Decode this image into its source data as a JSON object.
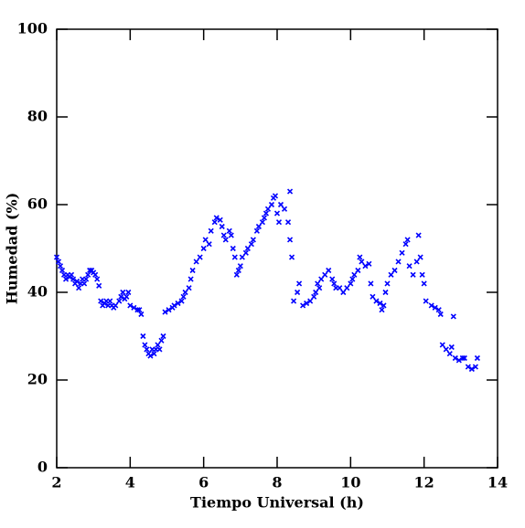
{
  "chart_data": {
    "type": "scatter",
    "xlabel": "Tiempo Universal (h)",
    "ylabel": "Humedad (%)",
    "color": "#0000ff",
    "xlim": [
      2,
      14
    ],
    "ylim": [
      0,
      100
    ],
    "xticks": [
      2,
      4,
      6,
      8,
      10,
      12,
      14
    ],
    "yticks": [
      0,
      20,
      40,
      60,
      80,
      100
    ],
    "x": [
      2.0,
      2.05,
      2.1,
      2.15,
      2.2,
      2.25,
      2.3,
      2.35,
      2.4,
      2.45,
      2.5,
      2.55,
      2.6,
      2.65,
      2.7,
      2.75,
      2.8,
      2.85,
      2.9,
      2.95,
      3.0,
      3.05,
      3.1,
      3.15,
      3.2,
      3.25,
      3.3,
      3.35,
      3.4,
      3.45,
      3.5,
      3.55,
      3.6,
      3.7,
      3.75,
      3.8,
      3.85,
      3.9,
      3.95,
      4.0,
      4.1,
      4.2,
      4.25,
      4.3,
      4.35,
      4.4,
      4.45,
      4.5,
      4.55,
      4.6,
      4.65,
      4.7,
      4.75,
      4.8,
      4.85,
      4.9,
      4.95,
      5.05,
      5.15,
      5.2,
      5.3,
      5.4,
      5.45,
      5.5,
      5.6,
      5.65,
      5.7,
      5.8,
      5.9,
      6.0,
      6.05,
      6.15,
      6.2,
      6.3,
      6.35,
      6.45,
      6.5,
      6.55,
      6.6,
      6.7,
      6.75,
      6.8,
      6.85,
      6.9,
      6.95,
      7.0,
      7.05,
      7.15,
      7.2,
      7.3,
      7.35,
      7.45,
      7.5,
      7.6,
      7.65,
      7.7,
      7.75,
      7.85,
      7.9,
      7.95,
      8.0,
      8.05,
      8.1,
      8.2,
      8.35,
      8.3,
      8.35,
      8.4,
      8.45,
      8.55,
      8.6,
      8.7,
      8.8,
      8.9,
      9.0,
      9.05,
      9.1,
      9.15,
      9.2,
      9.3,
      9.4,
      9.5,
      9.55,
      9.6,
      9.7,
      9.8,
      9.9,
      10.0,
      10.05,
      10.1,
      10.2,
      10.25,
      10.3,
      10.4,
      10.5,
      10.55,
      10.6,
      10.7,
      10.8,
      10.85,
      10.9,
      10.95,
      11.0,
      11.1,
      11.2,
      11.3,
      11.4,
      11.5,
      11.55,
      11.6,
      11.7,
      11.8,
      11.85,
      11.9,
      11.95,
      12.0,
      12.05,
      12.2,
      12.3,
      12.4,
      12.45,
      12.5,
      12.6,
      12.7,
      12.8,
      12.75,
      12.85,
      12.95,
      13.05,
      13.1,
      13.2,
      13.3,
      13.4,
      13.45
    ],
    "values": [
      48,
      47,
      46,
      45,
      44,
      43,
      44,
      43.5,
      44,
      43,
      42,
      42.5,
      41,
      42,
      43,
      42,
      43,
      44,
      45,
      45,
      44.5,
      44,
      43,
      41.5,
      38,
      37,
      37.5,
      38,
      37,
      38,
      37,
      36.5,
      37,
      38,
      39,
      40,
      38.5,
      39,
      40,
      37,
      36.5,
      36,
      36,
      35,
      30,
      28,
      27,
      26,
      25.5,
      27,
      26,
      27,
      28,
      27,
      29,
      30,
      35.5,
      36,
      36.5,
      37,
      37.5,
      38,
      39,
      40,
      41,
      43,
      45,
      47,
      48,
      50,
      52,
      51,
      54,
      56,
      57,
      56.5,
      55,
      53,
      52,
      54,
      53,
      50,
      48,
      44,
      45,
      46,
      48,
      49,
      50,
      51,
      52,
      54,
      55,
      56,
      57,
      58,
      59,
      60,
      61.5,
      62,
      58,
      56,
      60,
      59,
      63,
      56,
      52,
      48,
      38,
      40,
      42,
      37,
      37.5,
      38,
      39,
      40,
      42,
      41,
      43,
      44,
      45,
      43,
      42,
      41,
      41,
      40,
      41,
      42,
      43,
      44,
      45,
      48,
      47,
      46,
      46.5,
      42,
      39,
      38,
      37.5,
      36,
      37,
      40,
      42,
      44,
      45,
      47,
      49,
      51,
      52,
      46,
      44,
      47,
      53,
      48,
      44,
      42,
      38,
      37,
      36.5,
      36,
      35,
      28,
      27,
      26,
      34.5,
      27.5,
      25,
      24.5,
      25,
      25,
      23,
      22.5,
      23,
      25
    ]
  }
}
